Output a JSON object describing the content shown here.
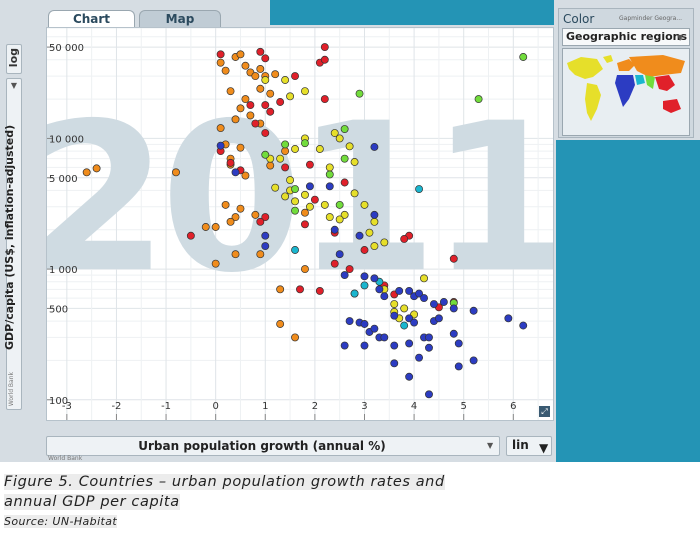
{
  "tabs": {
    "chart": "Chart",
    "map": "Map"
  },
  "y_axis": {
    "scale": "log",
    "label": "GDP/capita (US$, inflation-adjusted)",
    "source": "World Bank"
  },
  "x_axis": {
    "label": "Urban population growth (annual %)",
    "scale": "lin",
    "source": "World Bank"
  },
  "color_panel": {
    "title": "Color",
    "source": "Gapminder Geogra...",
    "selected": "Geographic regions"
  },
  "caption": "Figure 5. Countries – urban population growth rates and annual GDP per capita",
  "source_line": "Source: UN-Habitat",
  "colors": {
    "orange": "#f08c1c",
    "red": "#e0202a",
    "yellow": "#e6df2a",
    "green": "#72dc3c",
    "blue": "#2c3cc2",
    "cyan": "#1ab6cf"
  },
  "chart_data": {
    "type": "scatter",
    "year_watermark": "2011",
    "xlim": [
      -3.4,
      6.8
    ],
    "ylim": [
      70,
      70000
    ],
    "y_log": true,
    "x_ticks": [
      "-3",
      "-2",
      "-1",
      "0",
      "1",
      "2",
      "3",
      "4",
      "5",
      "6"
    ],
    "y_ticks": [
      {
        "v": 100,
        "label": "100"
      },
      {
        "v": 500,
        "label": "500"
      },
      {
        "v": 1000,
        "label": "1 000"
      },
      {
        "v": 5000,
        "label": "5 000"
      },
      {
        "v": 10000,
        "label": "10 000"
      },
      {
        "v": 50000,
        "label": "50 000"
      }
    ],
    "series": [
      {
        "color": "orange",
        "points": [
          [
            -2.6,
            5500
          ],
          [
            -2.4,
            5900
          ],
          [
            -0.8,
            5500
          ],
          [
            -0.2,
            2100
          ],
          [
            0,
            2100
          ],
          [
            0.1,
            38000
          ],
          [
            0.2,
            33000
          ],
          [
            0.3,
            23000
          ],
          [
            0.4,
            42000
          ],
          [
            0.5,
            44000
          ],
          [
            0.6,
            36000
          ],
          [
            0.7,
            32000
          ],
          [
            0.8,
            30000
          ],
          [
            0.9,
            34000
          ],
          [
            1.0,
            30000
          ],
          [
            1.2,
            31000
          ],
          [
            1.1,
            22000
          ],
          [
            0.9,
            24000
          ],
          [
            0.6,
            20000
          ],
          [
            0.5,
            17000
          ],
          [
            0.7,
            15000
          ],
          [
            0.9,
            13000
          ],
          [
            0.4,
            14000
          ],
          [
            0.1,
            12000
          ],
          [
            0.2,
            9000
          ],
          [
            0.3,
            7000
          ],
          [
            0.5,
            8500
          ],
          [
            0.3,
            6300
          ],
          [
            0.2,
            3100
          ],
          [
            0.4,
            2500
          ],
          [
            0.8,
            2600
          ],
          [
            1.1,
            6200
          ],
          [
            0.4,
            1300
          ],
          [
            0.9,
            1300
          ],
          [
            0.0,
            1100
          ],
          [
            0.5,
            2900
          ],
          [
            1.8,
            2700
          ],
          [
            1.8,
            1000
          ],
          [
            1.3,
            700
          ],
          [
            1.3,
            380
          ],
          [
            1.6,
            300
          ],
          [
            0.6,
            5200
          ],
          [
            1.4,
            8000
          ],
          [
            0.3,
            2300
          ]
        ]
      },
      {
        "color": "red",
        "points": [
          [
            -0.5,
            1800
          ],
          [
            0.1,
            44000
          ],
          [
            0.9,
            46000
          ],
          [
            1.0,
            41000
          ],
          [
            1.6,
            30000
          ],
          [
            2.1,
            38000
          ],
          [
            2.2,
            50000
          ],
          [
            2.2,
            40000
          ],
          [
            1.0,
            18000
          ],
          [
            1.1,
            16000
          ],
          [
            1.3,
            19000
          ],
          [
            2.2,
            20000
          ],
          [
            0.7,
            18000
          ],
          [
            0.8,
            13000
          ],
          [
            1.0,
            11000
          ],
          [
            0.1,
            8000
          ],
          [
            0.3,
            6500
          ],
          [
            0.5,
            5700
          ],
          [
            1.9,
            6300
          ],
          [
            2.0,
            3400
          ],
          [
            1.8,
            2200
          ],
          [
            2.4,
            1900
          ],
          [
            1.0,
            2500
          ],
          [
            0.9,
            2300
          ],
          [
            1.7,
            700
          ],
          [
            2.1,
            680
          ],
          [
            2.4,
            1100
          ],
          [
            2.7,
            1000
          ],
          [
            2.8,
            650
          ],
          [
            3.0,
            1400
          ],
          [
            3.4,
            750
          ],
          [
            3.6,
            640
          ],
          [
            3.9,
            1800
          ],
          [
            3.8,
            1700
          ],
          [
            4.8,
            1200
          ],
          [
            4.8,
            560
          ],
          [
            4.5,
            510
          ],
          [
            2.6,
            4600
          ],
          [
            1.4,
            6000
          ]
        ]
      },
      {
        "color": "yellow",
        "points": [
          [
            1.0,
            28000
          ],
          [
            1.4,
            28000
          ],
          [
            1.5,
            21000
          ],
          [
            1.8,
            23000
          ],
          [
            1.6,
            8300
          ],
          [
            1.8,
            10000
          ],
          [
            2.1,
            8300
          ],
          [
            2.4,
            11000
          ],
          [
            2.5,
            10000
          ],
          [
            2.7,
            8700
          ],
          [
            2.8,
            6600
          ],
          [
            2.3,
            6000
          ],
          [
            1.1,
            7000
          ],
          [
            1.3,
            7000
          ],
          [
            1.5,
            4800
          ],
          [
            1.4,
            3600
          ],
          [
            1.6,
            3300
          ],
          [
            1.8,
            3700
          ],
          [
            2.2,
            3100
          ],
          [
            2.3,
            2500
          ],
          [
            2.6,
            2600
          ],
          [
            2.8,
            3800
          ],
          [
            3.0,
            3100
          ],
          [
            3.2,
            2300
          ],
          [
            3.4,
            1600
          ],
          [
            3.1,
            1900
          ],
          [
            1.5,
            4000
          ],
          [
            1.2,
            4200
          ],
          [
            1.9,
            3000
          ],
          [
            3.4,
            700
          ],
          [
            3.6,
            540
          ],
          [
            3.8,
            500
          ],
          [
            3.6,
            470
          ],
          [
            3.7,
            420
          ],
          [
            4.2,
            850
          ],
          [
            4.0,
            450
          ],
          [
            3.2,
            1500
          ],
          [
            2.5,
            2400
          ]
        ]
      },
      {
        "color": "green",
        "points": [
          [
            6.2,
            42000
          ],
          [
            5.3,
            20000
          ],
          [
            2.9,
            22000
          ],
          [
            2.6,
            11800
          ],
          [
            2.6,
            7000
          ],
          [
            1.4,
            9000
          ],
          [
            1.8,
            9200
          ],
          [
            2.3,
            5300
          ],
          [
            1.6,
            2800
          ],
          [
            1.6,
            4100
          ],
          [
            4.8,
            550
          ],
          [
            2.5,
            3100
          ],
          [
            1.0,
            7500
          ]
        ]
      },
      {
        "color": "cyan",
        "points": [
          [
            4.1,
            4100
          ],
          [
            1.6,
            1400
          ],
          [
            3.3,
            800
          ],
          [
            3.0,
            750
          ],
          [
            3.8,
            370
          ],
          [
            2.8,
            650
          ]
        ]
      },
      {
        "color": "blue",
        "points": [
          [
            0.1,
            8800
          ],
          [
            0.4,
            5500
          ],
          [
            1.0,
            1800
          ],
          [
            1.0,
            1500
          ],
          [
            2.3,
            4300
          ],
          [
            3.2,
            2600
          ],
          [
            3.2,
            8600
          ],
          [
            1.9,
            4300
          ],
          [
            2.4,
            2000
          ],
          [
            2.9,
            1800
          ],
          [
            2.5,
            1300
          ],
          [
            2.6,
            900
          ],
          [
            3.0,
            880
          ],
          [
            3.2,
            850
          ],
          [
            3.3,
            700
          ],
          [
            3.4,
            620
          ],
          [
            3.7,
            680
          ],
          [
            3.9,
            680
          ],
          [
            4.0,
            620
          ],
          [
            4.1,
            650
          ],
          [
            4.2,
            600
          ],
          [
            4.4,
            540
          ],
          [
            4.6,
            560
          ],
          [
            4.8,
            500
          ],
          [
            5.2,
            480
          ],
          [
            5.9,
            420
          ],
          [
            6.2,
            370
          ],
          [
            2.7,
            400
          ],
          [
            2.9,
            390
          ],
          [
            3.0,
            380
          ],
          [
            3.1,
            330
          ],
          [
            3.2,
            350
          ],
          [
            3.3,
            300
          ],
          [
            3.4,
            300
          ],
          [
            3.6,
            440
          ],
          [
            3.9,
            420
          ],
          [
            4.0,
            390
          ],
          [
            4.2,
            300
          ],
          [
            4.4,
            400
          ],
          [
            4.5,
            420
          ],
          [
            4.8,
            320
          ],
          [
            4.9,
            270
          ],
          [
            5.2,
            200
          ],
          [
            4.9,
            180
          ],
          [
            4.3,
            300
          ],
          [
            2.6,
            260
          ],
          [
            3.0,
            260
          ],
          [
            3.6,
            260
          ],
          [
            3.9,
            270
          ],
          [
            4.3,
            250
          ],
          [
            4.1,
            210
          ],
          [
            3.6,
            190
          ],
          [
            3.9,
            150
          ],
          [
            4.3,
            110
          ]
        ]
      }
    ]
  }
}
